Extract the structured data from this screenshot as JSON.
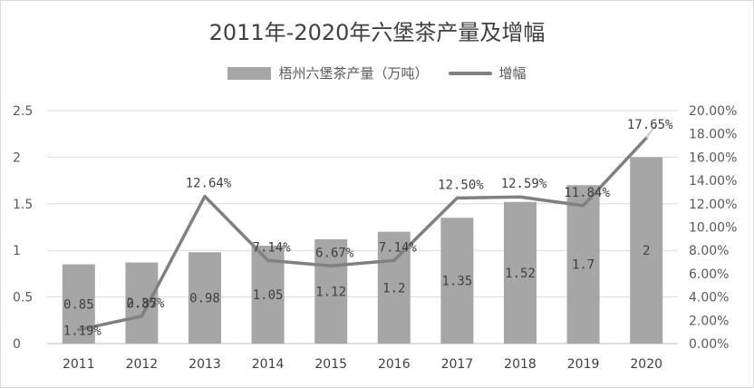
{
  "chart_data": {
    "type": "bar+line",
    "title": "2011年-2020年六堡茶产量及增幅",
    "categories": [
      "2011",
      "2012",
      "2013",
      "2014",
      "2015",
      "2016",
      "2017",
      "2018",
      "2019",
      "2020"
    ],
    "series": [
      {
        "name": "梧州六堡茶产量（万吨）",
        "type": "bar",
        "axis": "left",
        "values": [
          0.85,
          0.87,
          0.98,
          1.05,
          1.12,
          1.2,
          1.35,
          1.52,
          1.7,
          2
        ],
        "labels": [
          "0.85",
          "0.87",
          "0.98",
          "1.05",
          "1.12",
          "1.2",
          "1.35",
          "1.52",
          "1.7",
          "2"
        ],
        "color": "#a6a6a6"
      },
      {
        "name": "增幅",
        "type": "line",
        "axis": "right",
        "values": [
          1.19,
          2.35,
          12.64,
          7.14,
          6.67,
          7.14,
          12.5,
          12.59,
          11.84,
          17.65
        ],
        "labels": [
          "1.19%",
          "2.35%",
          "12.64%",
          "7.14%",
          "6.67%",
          "7.14%",
          "12.50%",
          "12.59%",
          "11.84%",
          "17.65%"
        ],
        "color": "#808080"
      }
    ],
    "y_left": {
      "ylim": [
        0,
        2.5
      ],
      "ticks": [
        "0",
        "0.5",
        "1",
        "1.5",
        "2",
        "2.5"
      ]
    },
    "y_right": {
      "ylim": [
        0,
        20
      ],
      "ticks": [
        "0.00%",
        "2.00%",
        "4.00%",
        "6.00%",
        "8.00%",
        "10.00%",
        "12.00%",
        "14.00%",
        "16.00%",
        "18.00%",
        "20.00%"
      ]
    },
    "grid": true,
    "legend_position": "top"
  }
}
